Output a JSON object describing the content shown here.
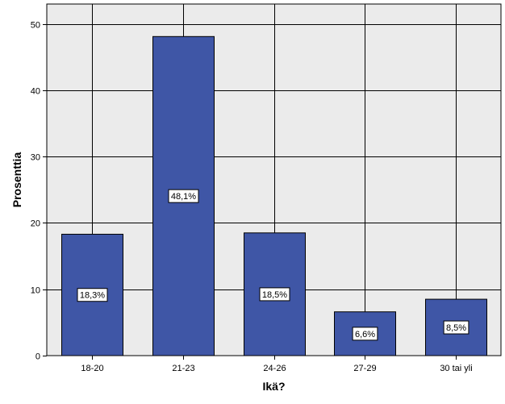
{
  "chart_data": {
    "type": "bar",
    "title": "",
    "xlabel": "Ikä?",
    "ylabel": "Prosenttia",
    "categories": [
      "18-20",
      "21-23",
      "24-26",
      "27-29",
      "30 tai yli"
    ],
    "values": [
      18.3,
      48.1,
      18.5,
      6.6,
      8.5
    ],
    "data_labels": [
      "18,3%",
      "48,1%",
      "18,5%",
      "6,6%",
      "8,5%"
    ],
    "ylim": [
      0,
      53
    ],
    "yticks": [
      0,
      10,
      20,
      30,
      40,
      50
    ],
    "ytick_labels": [
      "0",
      "10",
      "20",
      "30",
      "40",
      "50"
    ],
    "grid": true,
    "colors": {
      "bar": "#3f56a6",
      "plot_background": "#ebebeb",
      "grid": "#000000"
    }
  }
}
